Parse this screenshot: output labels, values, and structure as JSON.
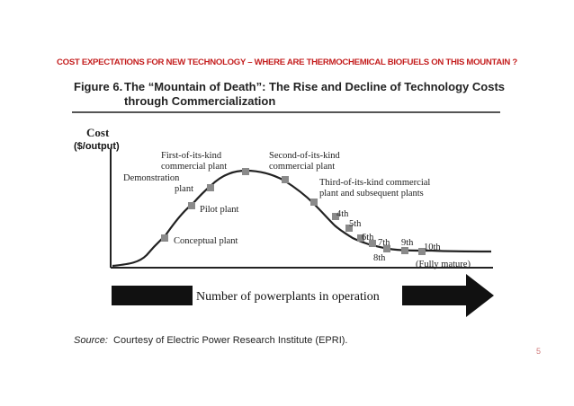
{
  "headline": "COST EXPECTATIONS FOR NEW TECHNOLOGY – WHERE ARE THERMOCHEMICAL BIOFUELS ON THIS MOUNTAIN ?",
  "figure": {
    "number": "Figure 6.",
    "title_line1": "The “Mountain of Death”: The Rise and Decline of Technology Costs",
    "title_line2": "through Commercialization",
    "y_axis_title": "Cost",
    "y_axis_unit": "($/output)",
    "labels": {
      "conceptual": "Conceptual plant",
      "pilot": "Pilot plant",
      "demo_line1": "Demonstration",
      "demo_line2": "plant",
      "first_line1": "First-of-its-kind",
      "first_line2": "commercial plant",
      "second_line1": "Second-of-its-kind",
      "second_line2": "commercial plant",
      "third_line1": "Third-of-its-kind commercial",
      "third_line2": "plant and subsequent plants",
      "n4": "4th",
      "n5": "5th",
      "n6": "6th",
      "n7": "7th",
      "n8": "8th",
      "n9": "9th",
      "n10": "10th",
      "fully_mature": "(Fully mature)"
    },
    "arrow_label": "Number of powerplants in operation",
    "source_label": "Source:",
    "source_text": "Courtesy of Electric Power Research Institute (EPRI)."
  },
  "page_number": "5",
  "colors": {
    "headline": "#c41e1e",
    "markers": "#8a8a8a",
    "curve": "#222222"
  }
}
